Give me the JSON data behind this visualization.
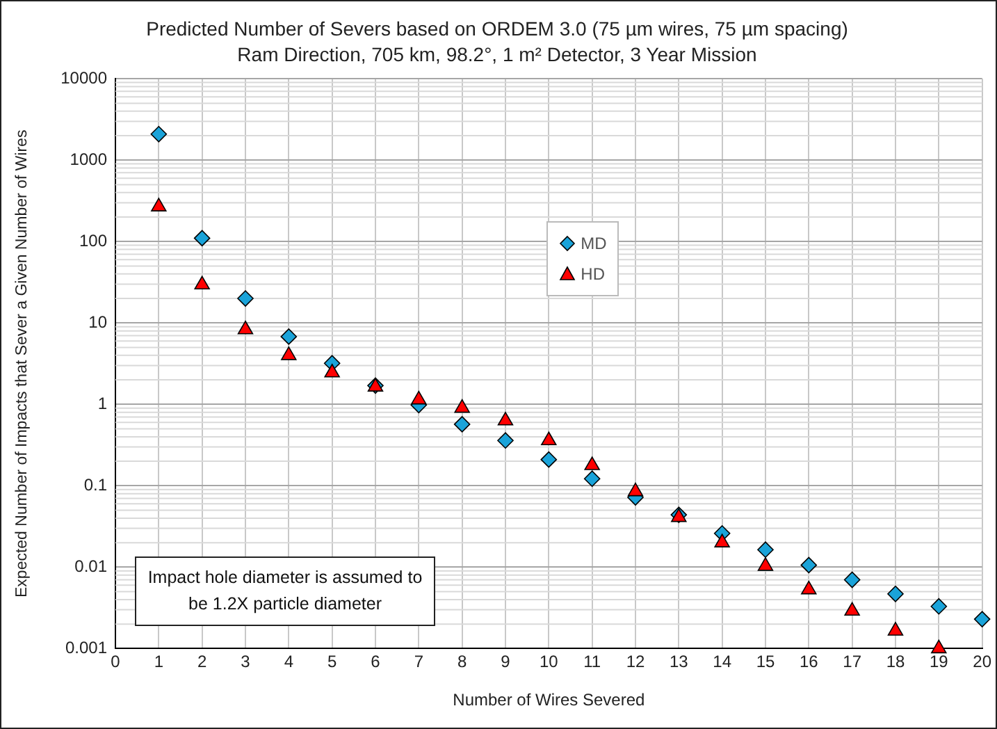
{
  "chart_data": {
    "type": "scatter",
    "title": "Predicted Number of Severs based on ORDEM 3.0 (75 µm wires, 75 µm spacing)",
    "subtitle": "Ram Direction, 705 km, 98.2°, 1 m² Detector, 3 Year Mission",
    "xlabel": "Number of Wires Severed",
    "ylabel": "Expected Number of Impacts that Sever a Given Number of Wires",
    "annotations": [
      "Impact hole diameter is assumed to be 1.2X particle diameter"
    ],
    "x": [
      1,
      2,
      3,
      4,
      5,
      6,
      7,
      8,
      9,
      10,
      11,
      12,
      13,
      14,
      15,
      16,
      17,
      18,
      19,
      20
    ],
    "series": [
      {
        "name": "MD",
        "color": "#1aa3d9",
        "marker": "diamond",
        "values": [
          2090,
          110,
          20,
          6.8,
          3.2,
          1.7,
          0.98,
          0.57,
          0.36,
          0.21,
          0.122,
          0.072,
          0.044,
          0.026,
          0.0164,
          0.0106,
          0.007,
          0.0047,
          0.0033,
          0.0023
        ]
      },
      {
        "name": "HD",
        "color": "#ff0000",
        "marker": "triangle",
        "values": [
          268,
          29.5,
          8.3,
          4.0,
          2.45,
          1.64,
          1.14,
          0.9,
          0.63,
          0.36,
          0.178,
          0.085,
          0.041,
          0.02,
          0.0103,
          0.0053,
          0.0029,
          0.00165,
          0.001,
          null
        ]
      }
    ],
    "log": "y",
    "xlim": [
      0,
      20
    ],
    "xticks": [
      0,
      1,
      2,
      3,
      4,
      5,
      6,
      7,
      8,
      9,
      10,
      11,
      12,
      13,
      14,
      15,
      16,
      17,
      18,
      19,
      20
    ],
    "ylim": [
      0.001,
      10000
    ],
    "yticks": [
      0.001,
      0.01,
      0.1,
      1,
      10,
      100,
      1000,
      10000
    ],
    "grid": true,
    "legend": "top"
  }
}
